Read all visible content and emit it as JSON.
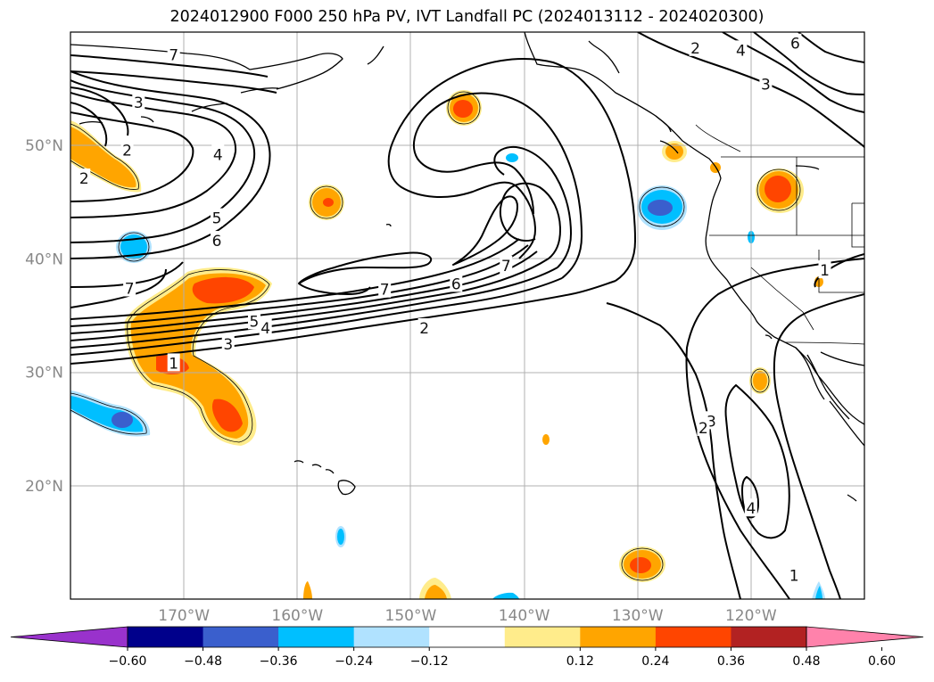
{
  "title": "2024012900 F000 250 hPa PV, IVT Landfall PC (2024013112 - 2024020300)",
  "map": {
    "projection": "PlateCarree",
    "lon_range": [
      -180,
      -110
    ],
    "lat_range": [
      10,
      60
    ],
    "grid": true,
    "lat_ticks": [
      {
        "lat": 20,
        "label": "20°N"
      },
      {
        "lat": 30,
        "label": "30°N"
      },
      {
        "lat": 40,
        "label": "40°N"
      },
      {
        "lat": 50,
        "label": "50°N"
      }
    ],
    "lon_ticks": [
      {
        "lon": -170,
        "label": "170°W"
      },
      {
        "lon": -160,
        "label": "160°W"
      },
      {
        "lon": -150,
        "label": "150°W"
      },
      {
        "lon": -140,
        "label": "140°W"
      },
      {
        "lon": -130,
        "label": "130°W"
      },
      {
        "lon": -120,
        "label": "120°W"
      }
    ],
    "contour_labels": [
      {
        "text": "7",
        "lon": -170.9,
        "lat": 58.0
      },
      {
        "text": "3",
        "lon": -174.0,
        "lat": 53.8
      },
      {
        "text": "2",
        "lon": -175.0,
        "lat": 49.6
      },
      {
        "text": "2",
        "lon": -178.8,
        "lat": 47.1
      },
      {
        "text": "4",
        "lon": -167.0,
        "lat": 49.2
      },
      {
        "text": "5",
        "lon": -167.1,
        "lat": 43.6
      },
      {
        "text": "6",
        "lon": -167.1,
        "lat": 41.6
      },
      {
        "text": "7",
        "lon": -174.8,
        "lat": 37.4
      },
      {
        "text": "7",
        "lon": -152.3,
        "lat": 37.3
      },
      {
        "text": "6",
        "lon": -146.0,
        "lat": 37.8
      },
      {
        "text": "7",
        "lon": -141.6,
        "lat": 39.4
      },
      {
        "text": "5",
        "lon": -163.8,
        "lat": 34.5
      },
      {
        "text": "4",
        "lon": -162.8,
        "lat": 33.9
      },
      {
        "text": "3",
        "lon": -166.1,
        "lat": 32.5
      },
      {
        "text": "2",
        "lon": -148.8,
        "lat": 33.9
      },
      {
        "text": "1",
        "lon": -170.9,
        "lat": 30.8
      },
      {
        "text": "2",
        "lon": -124.9,
        "lat": 58.6
      },
      {
        "text": "4",
        "lon": -120.9,
        "lat": 58.4
      },
      {
        "text": "3",
        "lon": -118.7,
        "lat": 55.4
      },
      {
        "text": "6",
        "lon": -116.1,
        "lat": 59.0
      },
      {
        "text": "1",
        "lon": -113.5,
        "lat": 39.0
      },
      {
        "text": "3",
        "lon": -123.5,
        "lat": 25.7
      },
      {
        "text": "2",
        "lon": -124.2,
        "lat": 25.1
      },
      {
        "text": "4",
        "lon": -120.0,
        "lat": 18.0
      },
      {
        "text": "1",
        "lon": -116.2,
        "lat": 12.1
      }
    ]
  },
  "colorbar": {
    "colors": [
      "#9932cc",
      "#00008b",
      "#3a5fcd",
      "#00bfff",
      "#b0e2ff",
      "#ffffff",
      "#ffec8b",
      "#ffa500",
      "#ff4500",
      "#b22222",
      "#ff82ab"
    ],
    "tick_labels": [
      "−0.60",
      "−0.48",
      "−0.36",
      "−0.24",
      "−0.12",
      "0.12",
      "0.24",
      "0.36",
      "0.48",
      "0.60"
    ],
    "extend": "both"
  }
}
